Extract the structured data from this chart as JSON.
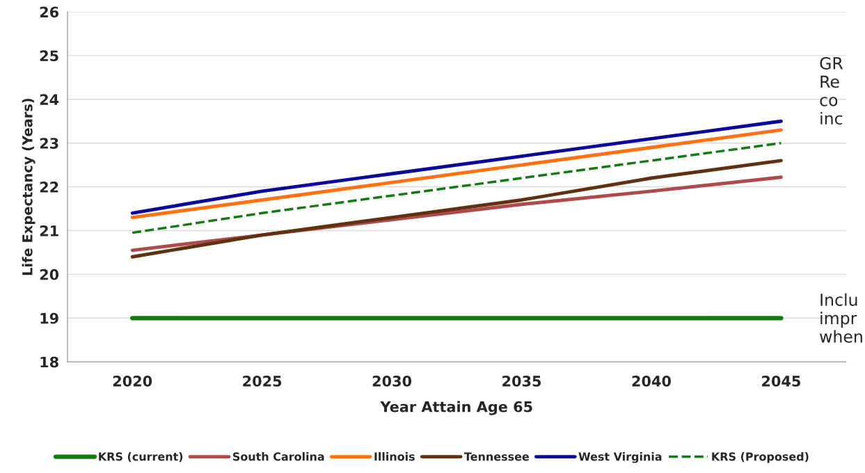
{
  "chart_data": {
    "type": "line",
    "xlabel": "Year Attain Age 65",
    "ylabel": "Life Expectancy (Years)",
    "categories": [
      "2020",
      "2025",
      "2030",
      "2035",
      "2040",
      "2045"
    ],
    "ylim": [
      18,
      26
    ],
    "yticks": [
      18,
      19,
      20,
      21,
      22,
      23,
      24,
      25,
      26
    ],
    "grid": "y",
    "legend": "bottom",
    "series": [
      {
        "name": "KRS (current)",
        "color": "#107c10",
        "values": [
          19,
          19,
          19,
          19,
          19,
          19
        ]
      },
      {
        "name": "South Carolina",
        "color": "#b04a4a",
        "values": [
          20.55,
          20.9,
          21.25,
          21.6,
          21.9,
          22.22
        ]
      },
      {
        "name": "Illinois",
        "color": "#ff7010",
        "values": [
          21.3,
          21.7,
          22.1,
          22.5,
          22.9,
          23.3
        ]
      },
      {
        "name": "Tennessee",
        "color": "#603010",
        "values": [
          20.4,
          20.9,
          21.3,
          21.7,
          22.2,
          22.6
        ]
      },
      {
        "name": "West Virginia",
        "color": "#0a0a9a",
        "values": [
          21.4,
          21.9,
          22.3,
          22.7,
          23.1,
          23.5
        ]
      },
      {
        "name": "KRS (Proposed)",
        "color": "#107c10",
        "line_style": "dashed",
        "values": [
          20.95,
          21.4,
          21.8,
          22.2,
          22.6,
          23.0
        ]
      }
    ],
    "annotations": [
      "GR\nRe\nco\ninc",
      "Inclu\nimpr\nwhen"
    ]
  }
}
